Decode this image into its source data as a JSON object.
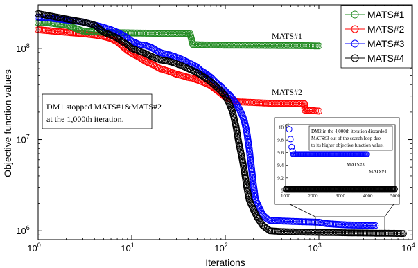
{
  "chart_data": {
    "type": "scatter",
    "xlabel": "Iterations",
    "ylabel": "Objective function values",
    "xscale": "log",
    "yscale": "log",
    "xlim": [
      1,
      10000
    ],
    "ylim": [
      800000,
      300000000
    ],
    "x_ticks": [
      {
        "base": "10",
        "exp": "0",
        "value": 1
      },
      {
        "base": "10",
        "exp": "1",
        "value": 10
      },
      {
        "base": "10",
        "exp": "2",
        "value": 100
      },
      {
        "base": "10",
        "exp": "3",
        "value": 1000
      },
      {
        "base": "10",
        "exp": "4",
        "value": 10000
      }
    ],
    "y_ticks": [
      {
        "base": "10",
        "exp": "6",
        "value": 1000000
      },
      {
        "base": "10",
        "exp": "7",
        "value": 10000000
      },
      {
        "base": "10",
        "exp": "8",
        "value": 100000000
      }
    ],
    "legend": {
      "placement": "top-right"
    },
    "series": [
      {
        "name": "MATS#1",
        "color": "#228b22",
        "points": [
          [
            1,
            190000000
          ],
          [
            1.3,
            190000000
          ],
          [
            2,
            180000000
          ],
          [
            3,
            155000000
          ],
          [
            4,
            152000000
          ],
          [
            5,
            150000000
          ],
          [
            6,
            149000000
          ],
          [
            8,
            148000000
          ],
          [
            10,
            147500000
          ],
          [
            12,
            147000000
          ],
          [
            15,
            146500000
          ],
          [
            20,
            146000000
          ],
          [
            25,
            145500000
          ],
          [
            30,
            145000000
          ],
          [
            35,
            145000000
          ],
          [
            40,
            145000000
          ],
          [
            42,
            145000000
          ],
          [
            45,
            110000000
          ],
          [
            60,
            109000000
          ],
          [
            100,
            108500000
          ],
          [
            200,
            108000000
          ],
          [
            400,
            107500000
          ],
          [
            700,
            107000000
          ],
          [
            1000,
            106500000
          ]
        ]
      },
      {
        "name": "MATS#2",
        "color": "#ff0000",
        "points": [
          [
            1,
            160000000
          ],
          [
            2,
            150000000
          ],
          [
            3,
            145000000
          ],
          [
            4,
            140000000
          ],
          [
            5,
            135000000
          ],
          [
            6,
            128000000
          ],
          [
            7,
            118000000
          ],
          [
            8,
            105000000
          ],
          [
            9,
            95000000
          ],
          [
            10,
            88000000
          ],
          [
            12,
            80000000
          ],
          [
            14,
            72000000
          ],
          [
            17,
            66000000
          ],
          [
            20,
            60000000
          ],
          [
            25,
            56000000
          ],
          [
            30,
            52000000
          ],
          [
            35,
            50000000
          ],
          [
            40,
            48000000
          ],
          [
            45,
            47000000
          ],
          [
            50,
            45000000
          ],
          [
            60,
            42000000
          ],
          [
            70,
            39000000
          ],
          [
            80,
            35000000
          ],
          [
            90,
            32000000
          ],
          [
            100,
            29000000
          ],
          [
            130,
            26000000
          ],
          [
            200,
            25500000
          ],
          [
            300,
            25000000
          ],
          [
            500,
            25000000
          ],
          [
            700,
            24800000
          ],
          [
            710,
            21000000
          ],
          [
            850,
            20800000
          ],
          [
            1000,
            20500000
          ]
        ]
      },
      {
        "name": "MATS#3",
        "color": "#0000ff",
        "points": [
          [
            1,
            220000000
          ],
          [
            1.3,
            215000000
          ],
          [
            2,
            205000000
          ],
          [
            3,
            195000000
          ],
          [
            4,
            180000000
          ],
          [
            5,
            170000000
          ],
          [
            6,
            160000000
          ],
          [
            7,
            150000000
          ],
          [
            8,
            140000000
          ],
          [
            9,
            130000000
          ],
          [
            10,
            120000000
          ],
          [
            11,
            115000000
          ],
          [
            12,
            110000000
          ],
          [
            14,
            108000000
          ],
          [
            16,
            103000000
          ],
          [
            20,
            90000000
          ],
          [
            25,
            85000000
          ],
          [
            30,
            80000000
          ],
          [
            35,
            75000000
          ],
          [
            40,
            70000000
          ],
          [
            45,
            66000000
          ],
          [
            50,
            62000000
          ],
          [
            55,
            57000000
          ],
          [
            60,
            54000000
          ],
          [
            65,
            51000000
          ],
          [
            70,
            48000000
          ],
          [
            75,
            45000000
          ],
          [
            80,
            42000000
          ],
          [
            85,
            40000000
          ],
          [
            90,
            38000000
          ],
          [
            100,
            34000000
          ],
          [
            110,
            31000000
          ],
          [
            120,
            28000000
          ],
          [
            130,
            25000000
          ],
          [
            140,
            22000000
          ],
          [
            150,
            19000000
          ],
          [
            160,
            16000000
          ],
          [
            170,
            12000000
          ],
          [
            180,
            8000000
          ],
          [
            190,
            5000000
          ],
          [
            200,
            3200000
          ],
          [
            210,
            2200000
          ],
          [
            230,
            1800000
          ],
          [
            250,
            1500000
          ],
          [
            280,
            1350000
          ],
          [
            300,
            1300000
          ],
          [
            400,
            1280000
          ],
          [
            600,
            1260000
          ],
          [
            800,
            1250000
          ],
          [
            1000,
            1240000
          ],
          [
            1200,
            1200000
          ],
          [
            1500,
            1180000
          ],
          [
            2000,
            1160000
          ],
          [
            3000,
            1150000
          ],
          [
            4000,
            1140000
          ]
        ]
      },
      {
        "name": "MATS#4",
        "color": "#000000",
        "points": [
          [
            1,
            240000000
          ],
          [
            2,
            210000000
          ],
          [
            3,
            195000000
          ],
          [
            4,
            180000000
          ],
          [
            5,
            150000000
          ],
          [
            6,
            140000000
          ],
          [
            7,
            130000000
          ],
          [
            8,
            118000000
          ],
          [
            9,
            110000000
          ],
          [
            10,
            100000000
          ],
          [
            12,
            93000000
          ],
          [
            14,
            88000000
          ],
          [
            16,
            82000000
          ],
          [
            18,
            78000000
          ],
          [
            20,
            75000000
          ],
          [
            25,
            72000000
          ],
          [
            30,
            68000000
          ],
          [
            35,
            64000000
          ],
          [
            40,
            60000000
          ],
          [
            50,
            54000000
          ],
          [
            60,
            48000000
          ],
          [
            70,
            43000000
          ],
          [
            80,
            38000000
          ],
          [
            90,
            34000000
          ],
          [
            100,
            30000000
          ],
          [
            110,
            25000000
          ],
          [
            120,
            20000000
          ],
          [
            130,
            14000000
          ],
          [
            140,
            9000000
          ],
          [
            150,
            6500000
          ],
          [
            160,
            4500000
          ],
          [
            170,
            3000000
          ],
          [
            180,
            2200000
          ],
          [
            200,
            1700000
          ],
          [
            220,
            1400000
          ],
          [
            250,
            1150000
          ],
          [
            280,
            1050000
          ],
          [
            300,
            1000000
          ],
          [
            400,
            980000
          ],
          [
            600,
            970000
          ],
          [
            1000,
            960000
          ],
          [
            1500,
            955000
          ],
          [
            2000,
            950000
          ],
          [
            3000,
            945000
          ],
          [
            4000,
            942000
          ],
          [
            5000,
            940000
          ],
          [
            6000,
            938000
          ],
          [
            8000,
            935000
          ]
        ]
      }
    ],
    "annotations": [
      {
        "id": "label_mats1",
        "text": "MATS#1",
        "x": 500,
        "y": 125000000
      },
      {
        "id": "label_mats2",
        "text": "MATS#2",
        "x": 500,
        "y": 30000000
      },
      {
        "id": "dm1_note",
        "lines": [
          "DM1 stopped MATS#1&MATS#2",
          "at the 1,000th iteration."
        ]
      }
    ],
    "inset": {
      "xlim": [
        1000,
        5000
      ],
      "x_ticks": [
        "1000",
        "2000",
        "3000",
        "4000",
        "5000"
      ],
      "y_ticks": [
        "10",
        "9.8",
        "9.6",
        "9.4",
        "9.2",
        "9"
      ],
      "y_exp_label": "x10",
      "y_exp": "5",
      "note_lines": [
        "DM2 in the 4,000th iteration discarded",
        "MATS#3 out of the search loop due",
        "to its higher objective function value."
      ],
      "label_mats3": "MATS#3",
      "label_mats4": "MATS#4"
    }
  }
}
